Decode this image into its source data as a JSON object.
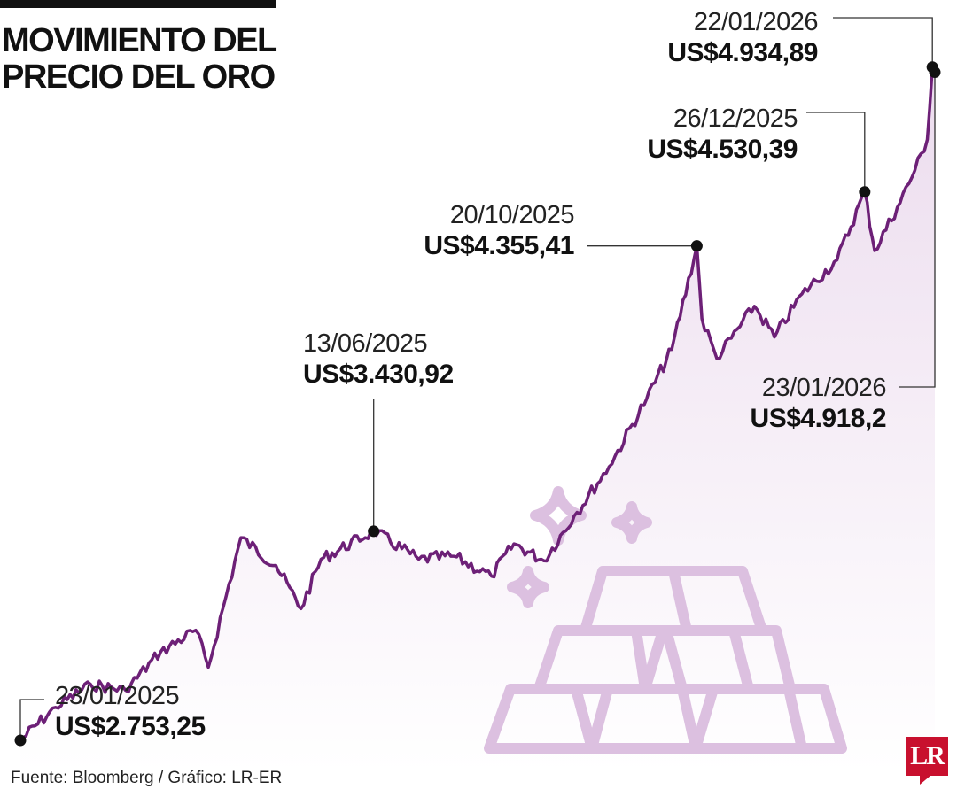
{
  "title": "MOVIMIENTO DEL\nPRECIO DEL ORO",
  "source": "Fuente: Bloomberg / Gráfico: LR-ER",
  "logo_text": "LR",
  "colors": {
    "line": "#6d2077",
    "area_top": "#ecdcee",
    "area_bottom": "#ffffff",
    "illustration": "#dcc0e0",
    "brand": "#c8102e"
  },
  "illustration": "gold-bars-icon",
  "chart_data": {
    "type": "area",
    "title": "MOVIMIENTO DEL PRECIO DEL ORO",
    "xlabel": "",
    "ylabel": "",
    "unit": "US$",
    "x_range": [
      "2025-01-23",
      "2026-01-23"
    ],
    "ylim": [
      2650,
      4980
    ],
    "grid": false,
    "x": [
      "2025-01-23",
      "2025-02-06",
      "2025-02-20",
      "2025-03-06",
      "2025-03-20",
      "2025-04-03",
      "2025-04-08",
      "2025-04-21",
      "2025-05-05",
      "2025-05-15",
      "2025-05-23",
      "2025-06-13",
      "2025-07-01",
      "2025-07-15",
      "2025-07-30",
      "2025-08-08",
      "2025-08-20",
      "2025-09-01",
      "2025-09-15",
      "2025-09-30",
      "2025-10-10",
      "2025-10-20",
      "2025-10-22",
      "2025-10-28",
      "2025-11-12",
      "2025-11-20",
      "2025-12-01",
      "2025-12-15",
      "2025-12-26",
      "2025-12-30",
      "2026-01-08",
      "2026-01-15",
      "2026-01-20",
      "2026-01-22",
      "2026-01-23"
    ],
    "y": [
      2753.25,
      2860,
      2935,
      2915,
      3040,
      3110,
      2990,
      3410,
      3320,
      3180,
      3340,
      3430.92,
      3340,
      3350,
      3285,
      3390,
      3335,
      3480,
      3640,
      3860,
      4020,
      4355.41,
      4120,
      3990,
      4160,
      4060,
      4200,
      4310,
      4530.39,
      4340,
      4480,
      4600,
      4700,
      4934.89,
      4918.2
    ],
    "annotations": [
      {
        "date": "23/01/2025",
        "value": "US$2.753,25"
      },
      {
        "date": "13/06/2025",
        "value": "US$3.430,92"
      },
      {
        "date": "20/10/2025",
        "value": "US$4.355,41"
      },
      {
        "date": "26/12/2025",
        "value": "US$4.530,39"
      },
      {
        "date": "22/01/2026",
        "value": "US$4.934,89"
      },
      {
        "date": "23/01/2026",
        "value": "US$4.918,2"
      }
    ]
  }
}
